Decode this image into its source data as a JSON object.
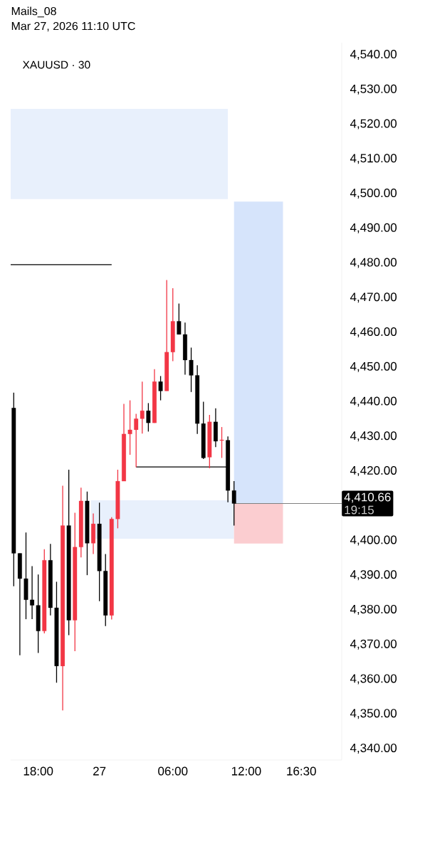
{
  "chart_data": {
    "type": "candlestick",
    "title": "Mails_08",
    "subtitle": "Mar 27, 2026 11:10 UTC",
    "annotations": [
      "XAUUSD · 30",
      "19:15"
    ],
    "categories": [
      null,
      null,
      null,
      null,
      "18:00",
      null,
      null,
      null,
      null,
      null,
      null,
      null,
      null,
      null,
      "27",
      null,
      null,
      null,
      null,
      null,
      null,
      null,
      null,
      null,
      null,
      null,
      "06:00",
      null,
      null,
      null,
      null,
      null,
      null,
      null,
      null,
      null,
      null,
      null,
      "12:00",
      null,
      null,
      null,
      null,
      null,
      null,
      null,
      null,
      "16:30"
    ],
    "ohlc": [
      [
        4438.2,
        4442.6,
        4386.8,
        4396.3
      ],
      [
        4396.3,
        4396.3,
        4366.9,
        4389.0
      ],
      [
        4389.0,
        4402.3,
        4377.3,
        4382.9
      ],
      [
        4382.9,
        4392.6,
        4377.3,
        4381.3
      ],
      [
        4381.3,
        4390.2,
        4367.6,
        4373.9
      ],
      [
        4373.9,
        4397.5,
        4373.2,
        4394.3
      ],
      [
        4394.3,
        4399.0,
        4378.4,
        4380.6
      ],
      [
        4380.6,
        4388.1,
        4359.0,
        4363.8
      ],
      [
        4363.8,
        4415.8,
        4351.0,
        4404.3
      ],
      [
        4404.3,
        4420.4,
        4372.7,
        4377.0
      ],
      [
        4377.0,
        4408.0,
        4368.1,
        4398.1
      ],
      [
        4398.1,
        4415.2,
        4395.1,
        4411.4
      ],
      [
        4411.4,
        4414.1,
        4390.0,
        4399.2
      ],
      [
        4399.2,
        4407.8,
        4396.1,
        4404.8
      ],
      [
        4404.8,
        4410.9,
        4382.5,
        4391.2
      ],
      [
        4391.2,
        4396.1,
        4375.3,
        4378.4
      ],
      [
        4378.4,
        4406.7,
        4377.2,
        4406.2
      ],
      [
        4406.2,
        4420.4,
        4403.5,
        4417.1
      ],
      [
        4417.1,
        4439.4,
        4417.1,
        4430.7
      ],
      [
        4430.7,
        4440.4,
        4424.7,
        4431.9
      ],
      [
        4431.9,
        4436.5,
        4421.1,
        4435.1
      ],
      [
        4435.1,
        4445.8,
        4430.8,
        4437.4
      ],
      [
        4437.4,
        4439.6,
        4431.4,
        4433.9
      ],
      [
        4433.9,
        4449.4,
        4433.9,
        4445.8
      ],
      [
        4445.8,
        4447.4,
        4440.4,
        4443.1
      ],
      [
        4443.1,
        4475.1,
        4443.1,
        4454.3
      ],
      [
        4454.3,
        4472.7,
        4451.7,
        4463.2
      ],
      [
        4463.2,
        4468.3,
        4459.4,
        4459.4
      ],
      [
        4459.4,
        4462.8,
        4447.8,
        4452.0
      ],
      [
        4452.0,
        4455.6,
        4442.8,
        4447.6
      ],
      [
        4447.6,
        4450.5,
        4430.7,
        4433.7
      ],
      [
        4433.7,
        4440.0,
        4423.5,
        4423.8
      ],
      [
        4424.0,
        4436.2,
        4420.8,
        4434.2
      ],
      [
        4434.2,
        4438.1,
        4426.9,
        4428.6
      ],
      [
        4428.8,
        4432.7,
        4423.8,
        4429.0
      ],
      [
        4428.9,
        4430.0,
        4411.0,
        4414.4
      ],
      [
        4414.4,
        4417.1,
        4404.3,
        4410.66
      ],
      null,
      null,
      null,
      null,
      null,
      null,
      null,
      null,
      null,
      null,
      null
    ],
    "colors": [
      "#000000",
      "#000000",
      "#000000",
      "#000000",
      "#000000",
      "#f23645",
      "#000000",
      "#000000",
      "#f23645",
      "#000000",
      "#f23645",
      "#f23645",
      "#000000",
      "#f23645",
      "#000000",
      "#000000",
      "#f23645",
      "#f23645",
      "#f23645",
      "#f23645",
      "#f23645",
      "#f23645",
      "#000000",
      "#f23645",
      "#000000",
      "#f23645",
      "#f23645",
      "#000000",
      "#000000",
      "#000000",
      "#000000",
      "#000000",
      "#f23645",
      "#000000",
      "#f23645",
      "#000000",
      "#000000",
      null,
      null,
      null,
      null,
      null,
      null,
      null,
      null,
      null,
      null,
      null
    ],
    "bands": [
      {
        "axis": "y",
        "from": 4498.4,
        "to": 4524.4,
        "color": "#e8f0fc"
      },
      {
        "axis": "y",
        "from": 4400.5,
        "to": 4411.6,
        "color": "#e8f0fc"
      },
      {
        "axis": "y",
        "from": 4410.66,
        "to": 4497.7,
        "color": "#d6e4fb"
      },
      {
        "axis": "y",
        "from": 4399.1,
        "to": 4410.66,
        "color": "#fbcdd0"
      }
    ],
    "ref_lines": [
      {
        "axis": "y",
        "value": 4479.5,
        "color": "#000000"
      },
      {
        "axis": "y",
        "value": 4421.2,
        "color": "#000000"
      },
      {
        "axis": "y",
        "value": 4410.66,
        "label": "4,410.66",
        "color": "#808080"
      }
    ],
    "ylim": [
      4336.7,
      4543.5
    ],
    "yticks": [
      {
        "value": 4340,
        "label": "4,340.00"
      },
      {
        "value": 4350,
        "label": "4,350.00"
      },
      {
        "value": 4360,
        "label": "4,360.00"
      },
      {
        "value": 4370,
        "label": "4,370.00"
      },
      {
        "value": 4380,
        "label": "4,380.00"
      },
      {
        "value": 4390,
        "label": "4,390.00"
      },
      {
        "value": 4400,
        "label": "4,400.00"
      },
      {
        "value": 4420,
        "label": "4,420.00"
      },
      {
        "value": 4430,
        "label": "4,430.00"
      },
      {
        "value": 4440,
        "label": "4,440.00"
      },
      {
        "value": 4450,
        "label": "4,450.00"
      },
      {
        "value": 4460,
        "label": "4,460.00"
      },
      {
        "value": 4470,
        "label": "4,470.00"
      },
      {
        "value": 4480,
        "label": "4,480.00"
      },
      {
        "value": 4490,
        "label": "4,490.00"
      },
      {
        "value": 4500,
        "label": "4,500.00"
      },
      {
        "value": 4510,
        "label": "4,510.00"
      },
      {
        "value": 4520,
        "label": "4,520.00"
      },
      {
        "value": 4530,
        "label": "4,530.00"
      },
      {
        "value": 4540,
        "label": "4,540.00"
      }
    ],
    "grid": false
  }
}
